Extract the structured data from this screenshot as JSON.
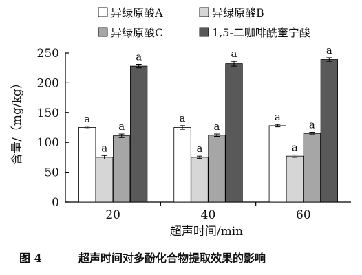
{
  "chart_data": {
    "type": "bar",
    "title": "",
    "xlabel": "超声时间/min",
    "ylabel": "含量/（mg/kg）",
    "categories": [
      "20",
      "40",
      "60"
    ],
    "ylim": [
      0,
      250
    ],
    "yticks": [
      0,
      50,
      100,
      150,
      200,
      250
    ],
    "grid": false,
    "legend_position": "top",
    "series": [
      {
        "name": "异绿原酸A",
        "color": "#ffffff",
        "values": [
          125,
          125,
          128
        ],
        "errors": [
          2,
          3,
          2
        ],
        "labels": [
          "a",
          "a",
          "a"
        ]
      },
      {
        "name": "异绿原酸B",
        "color": "#d6d6d6",
        "values": [
          75,
          75,
          77
        ],
        "errors": [
          3,
          2,
          2
        ],
        "labels": [
          "a",
          "a",
          "a"
        ]
      },
      {
        "name": "异绿原酸C",
        "color": "#a6a6a6",
        "values": [
          111,
          112,
          115
        ],
        "errors": [
          3,
          2,
          2
        ],
        "labels": [
          "a",
          "a",
          "a"
        ]
      },
      {
        "name": "1,5-二咖啡酰奎宁酸",
        "color": "#595959",
        "values": [
          228,
          232,
          239
        ],
        "errors": [
          3,
          4,
          3
        ],
        "labels": [
          "a",
          "a",
          "a"
        ]
      }
    ]
  },
  "caption": {
    "number": "图 4",
    "text": "超声时间对多酚化合物提取效果的影响"
  }
}
